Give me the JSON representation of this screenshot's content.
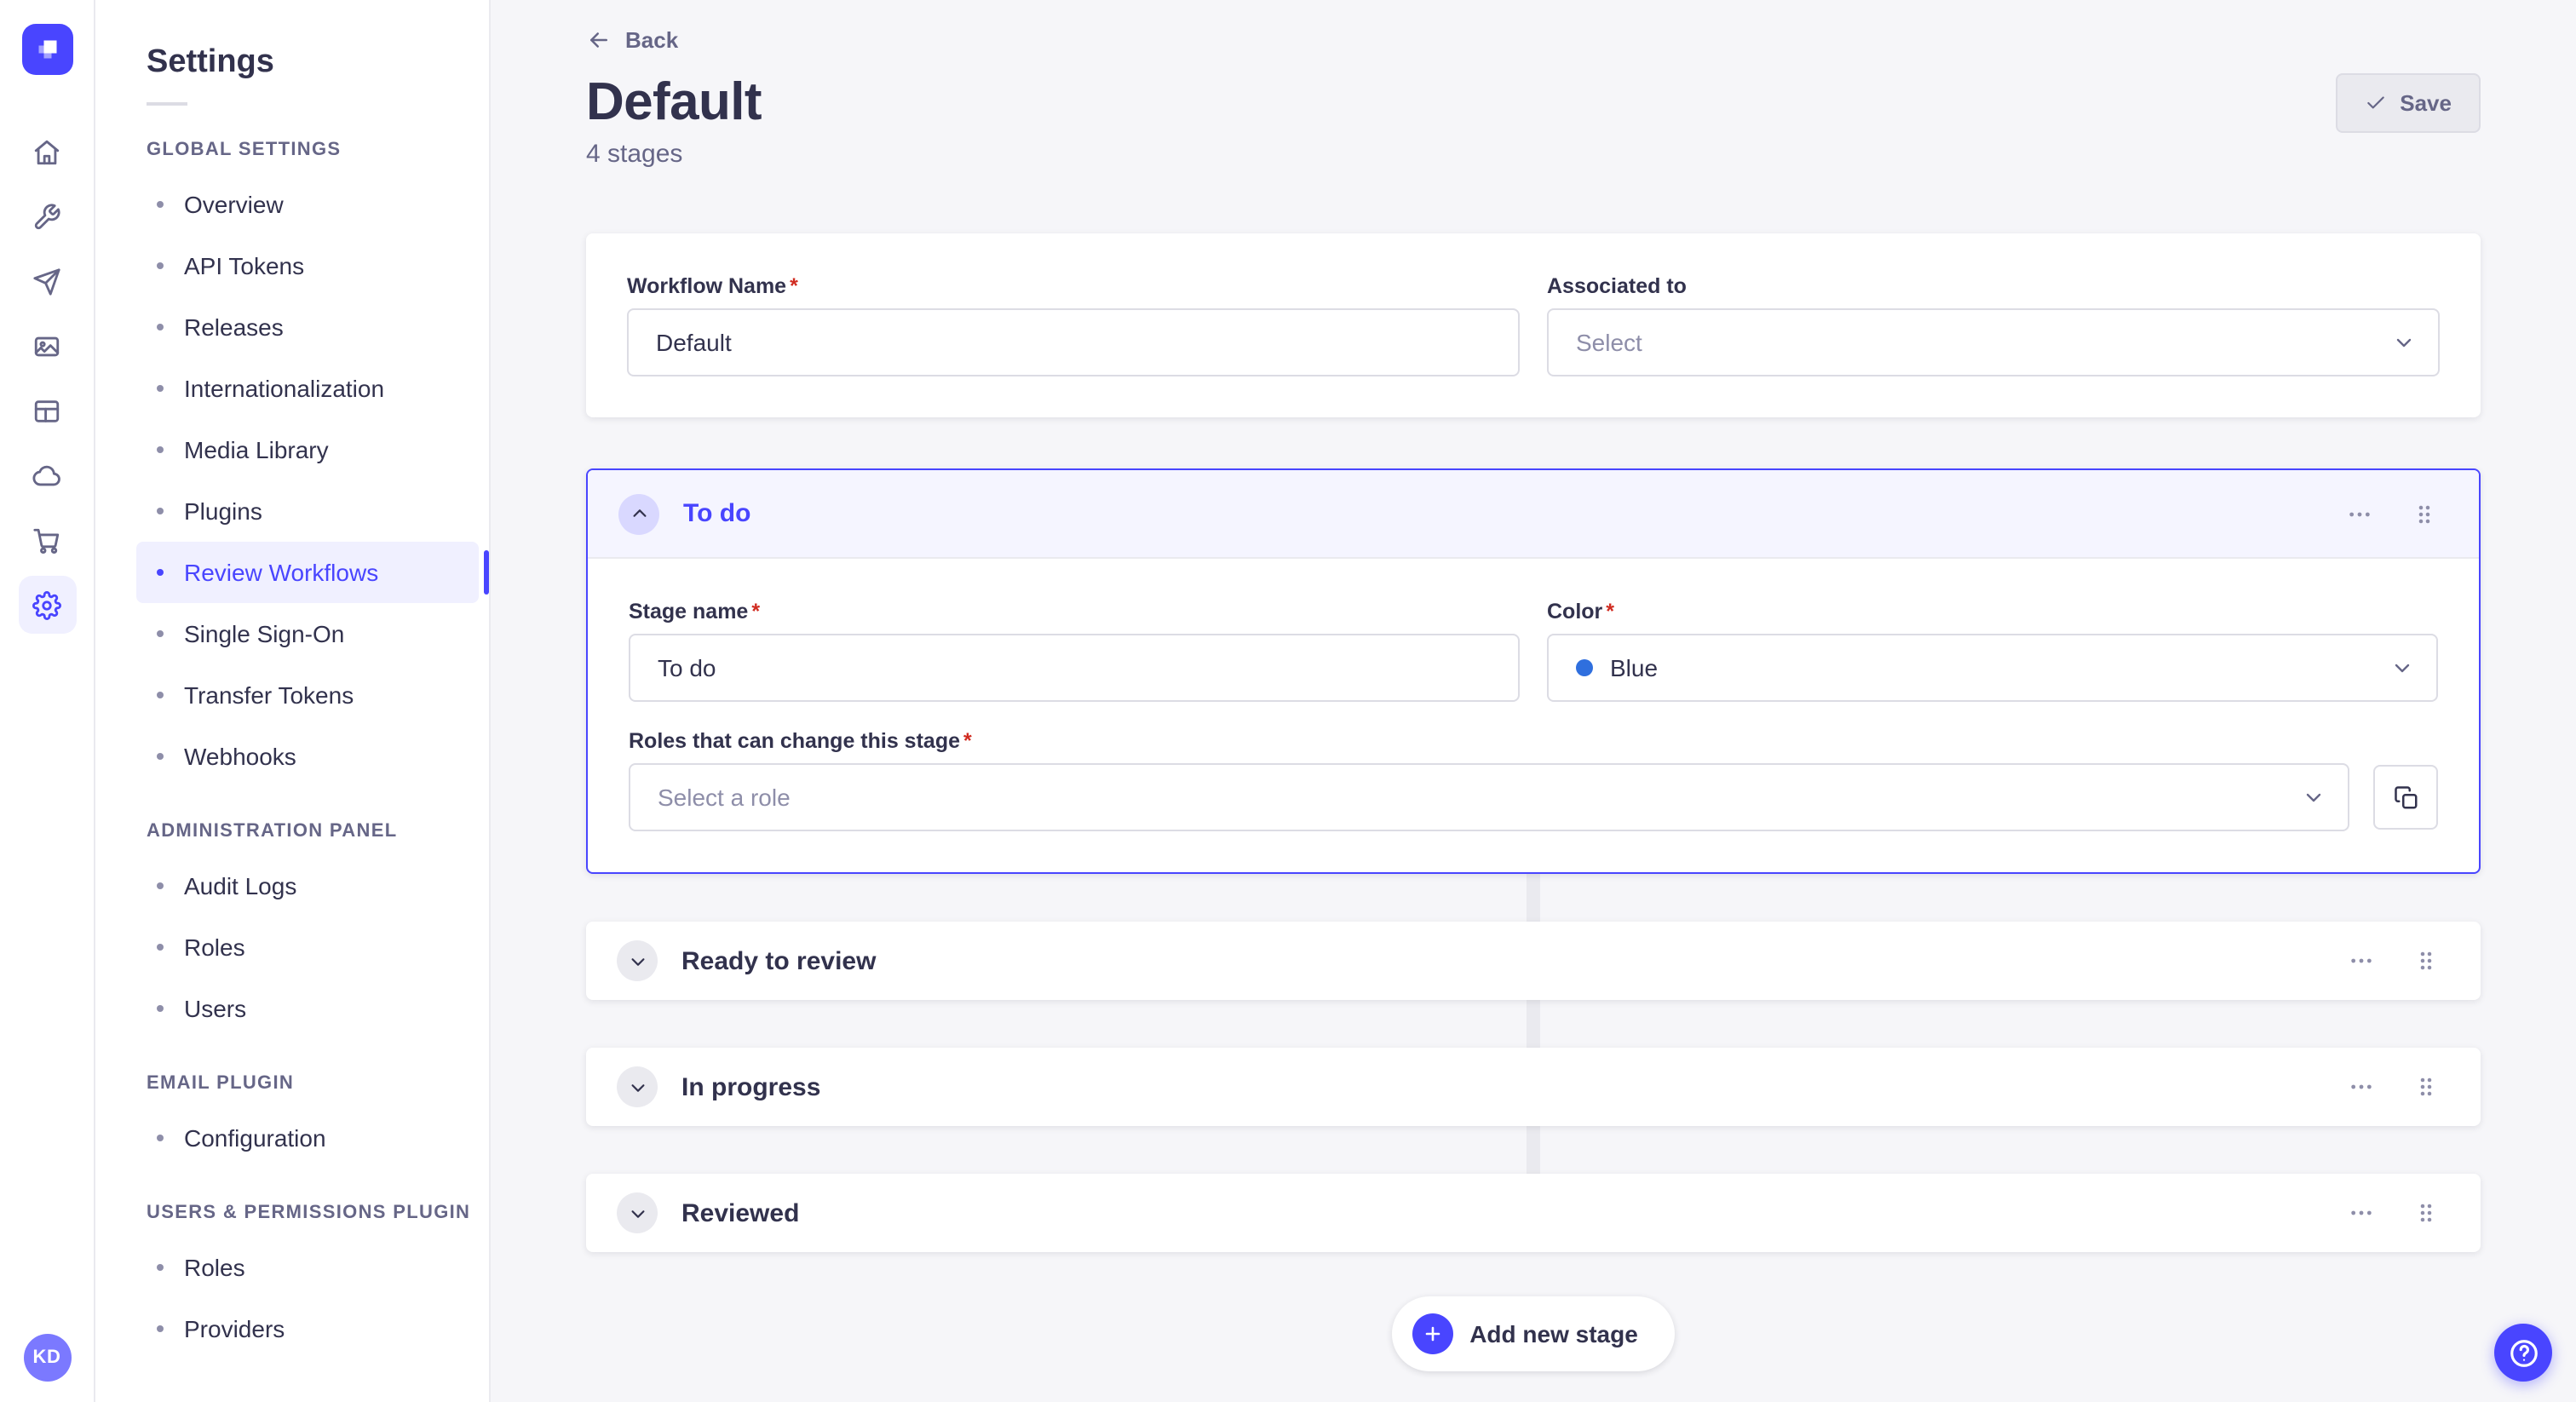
{
  "ui": {
    "required_marker": "*"
  },
  "colors": {
    "brand": "#4945ff",
    "active_item_bg": "#f0f0ff",
    "stage_connector": "#eaeaef"
  },
  "nav_rail": {
    "items": [
      {
        "name": "home",
        "icon": "home-icon",
        "active": false
      },
      {
        "name": "wrench",
        "icon": "wrench-icon",
        "active": false
      },
      {
        "name": "paper-plane",
        "icon": "paper-plane-icon",
        "active": false
      },
      {
        "name": "images",
        "icon": "images-icon",
        "active": false
      },
      {
        "name": "layout",
        "icon": "layout-icon",
        "active": false
      },
      {
        "name": "cloud",
        "icon": "cloud-icon",
        "active": false
      },
      {
        "name": "cart",
        "icon": "cart-icon",
        "active": false
      },
      {
        "name": "settings",
        "icon": "gear-icon",
        "active": true
      }
    ],
    "avatar_initials": "KD"
  },
  "sidebar": {
    "title": "Settings",
    "sections": [
      {
        "header": "GLOBAL SETTINGS",
        "items": [
          {
            "label": "Overview",
            "active": false
          },
          {
            "label": "API Tokens",
            "active": false
          },
          {
            "label": "Releases",
            "active": false
          },
          {
            "label": "Internationalization",
            "active": false
          },
          {
            "label": "Media Library",
            "active": false
          },
          {
            "label": "Plugins",
            "active": false
          },
          {
            "label": "Review Workflows",
            "active": true
          },
          {
            "label": "Single Sign-On",
            "active": false
          },
          {
            "label": "Transfer Tokens",
            "active": false
          },
          {
            "label": "Webhooks",
            "active": false
          }
        ]
      },
      {
        "header": "ADMINISTRATION PANEL",
        "items": [
          {
            "label": "Audit Logs",
            "active": false
          },
          {
            "label": "Roles",
            "active": false
          },
          {
            "label": "Users",
            "active": false
          }
        ]
      },
      {
        "header": "EMAIL PLUGIN",
        "items": [
          {
            "label": "Configuration",
            "active": false
          }
        ]
      },
      {
        "header": "USERS & PERMISSIONS PLUGIN",
        "items": [
          {
            "label": "Roles",
            "active": false
          },
          {
            "label": "Providers",
            "active": false
          }
        ]
      }
    ]
  },
  "header": {
    "back_label": "Back",
    "title": "Default",
    "subtitle": "4 stages",
    "save_label": "Save"
  },
  "workflow_form": {
    "name_label": "Workflow Name",
    "name_value": "Default",
    "associated_label": "Associated to",
    "associated_placeholder": "Select"
  },
  "stages": {
    "expanded": {
      "title": "To do",
      "stage_name_label": "Stage name",
      "stage_name_value": "To do",
      "color_label": "Color",
      "color_value": "Blue",
      "color_hex": "#2f6fde",
      "roles_label": "Roles that can change this stage",
      "roles_placeholder": "Select a role"
    },
    "collapsed": [
      {
        "title": "Ready to review"
      },
      {
        "title": "In progress"
      },
      {
        "title": "Reviewed"
      }
    ]
  },
  "footer": {
    "add_stage_label": "Add new stage"
  }
}
